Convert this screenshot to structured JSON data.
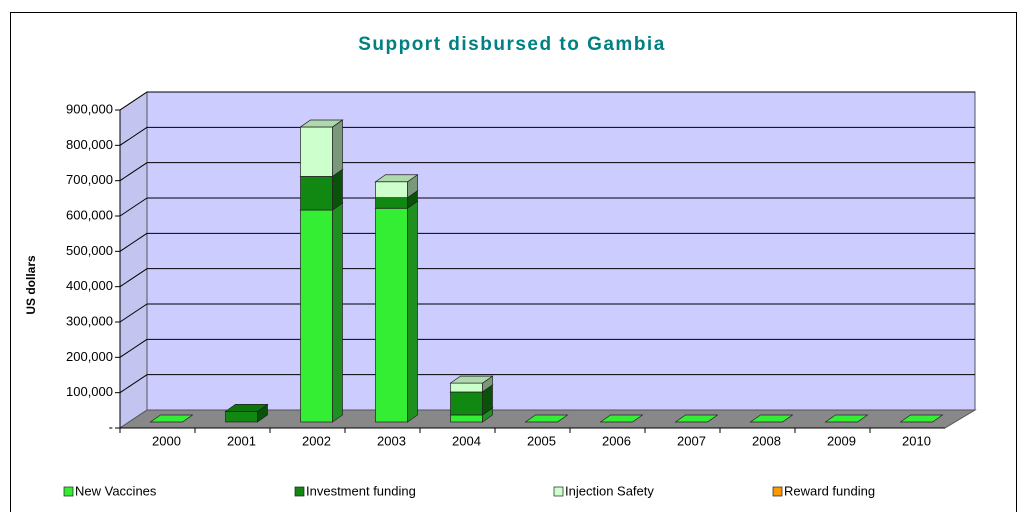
{
  "chart_data": {
    "type": "bar",
    "stacked": true,
    "title": "Support disbursed to Gambia",
    "ylabel": "US dollars",
    "categories": [
      "2000",
      "2001",
      "2002",
      "2003",
      "2004",
      "2005",
      "2006",
      "2007",
      "2008",
      "2009",
      "2010"
    ],
    "series": [
      {
        "name": "New Vaccines",
        "color": "#33ee33",
        "values": [
          0,
          0,
          600000,
          605000,
          20000,
          0,
          0,
          0,
          0,
          0,
          0
        ]
      },
      {
        "name": "Investment funding",
        "color": "#118811",
        "values": [
          0,
          30000,
          95000,
          30000,
          65000,
          0,
          0,
          0,
          0,
          0,
          0
        ]
      },
      {
        "name": "Injection Safety",
        "color": "#ccffcc",
        "values": [
          0,
          0,
          140000,
          45000,
          25000,
          0,
          0,
          0,
          0,
          0,
          0
        ]
      },
      {
        "name": "Reward funding",
        "color": "#ff9900",
        "values": [
          0,
          0,
          0,
          0,
          0,
          0,
          0,
          0,
          0,
          0,
          0
        ]
      }
    ],
    "ylim": [
      0,
      900000
    ],
    "yticks": [
      {
        "value": 0,
        "label": "-"
      },
      {
        "value": 100000,
        "label": "100,000"
      },
      {
        "value": 200000,
        "label": "200,000"
      },
      {
        "value": 300000,
        "label": "300,000"
      },
      {
        "value": 400000,
        "label": "400,000"
      },
      {
        "value": 500000,
        "label": "500,000"
      },
      {
        "value": 600000,
        "label": "600,000"
      },
      {
        "value": 700000,
        "label": "700,000"
      },
      {
        "value": 800000,
        "label": "800,000"
      },
      {
        "value": 900000,
        "label": "900,000"
      }
    ],
    "grid": true,
    "legend": "bottom"
  }
}
